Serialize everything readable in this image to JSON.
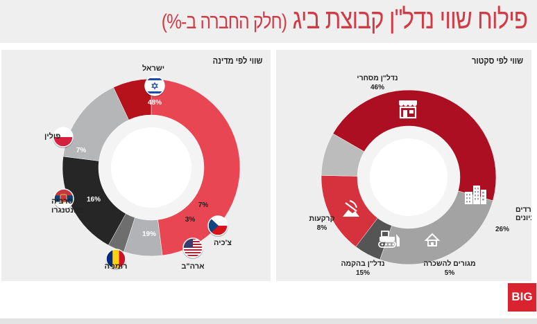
{
  "title": {
    "main": "פילוח שווי נדל\"ן קבוצת ביג",
    "sub": "(חלק החברה ב-%)"
  },
  "logo_text": "BIG",
  "chart_data": [
    {
      "type": "pie",
      "title": "שווי לפי מדינה",
      "slices": [
        {
          "label": "ישראל",
          "value": 48,
          "value_label": "48%",
          "color": "#e84652",
          "icon": "israel-flag-icon"
        },
        {
          "label": "צ'כיה",
          "value": 7,
          "value_label": "7%",
          "color": "#b1b3b6",
          "icon": "czech-flag-icon"
        },
        {
          "label": "ארה\"ב",
          "value": 3,
          "value_label": "3%",
          "color": "#6e6e6e",
          "icon": "usa-flag-icon"
        },
        {
          "label": "רומניה",
          "value": 19,
          "value_label": "19%",
          "color": "#262626",
          "icon": "romania-flag-icon"
        },
        {
          "label": "סרביה ומונטנגרו",
          "value": 16,
          "value_label": "16%",
          "color": "#b5b6b8",
          "icon": "serbia-flag-icon"
        },
        {
          "label": "פולין",
          "value": 7,
          "value_label": "7%",
          "color": "#b6121c",
          "icon": "poland-flag-icon"
        }
      ]
    },
    {
      "type": "pie",
      "title": "שווי לפי סקטור",
      "slices": [
        {
          "label": "נדל\"ן מסחרי",
          "value": 46,
          "value_label": "46%",
          "color": "#ac0f22",
          "icon": "store-icon"
        },
        {
          "label": "משרדים וחניונים",
          "value": 26,
          "value_label": "26%",
          "color": "#a3a3a3",
          "icon": "buildings-icon"
        },
        {
          "label": "מגורים להשכרה",
          "value": 5,
          "value_label": "5%",
          "color": "#555555",
          "icon": "house-icon"
        },
        {
          "label": "נדל\"ן בהקמה",
          "value": 15,
          "value_label": "15%",
          "color": "#d6323d",
          "icon": "bulldozer-icon"
        },
        {
          "label": "קרקעות",
          "value": 8,
          "value_label": "8%",
          "color": "#bcbcbc",
          "icon": "land-icon"
        }
      ]
    }
  ]
}
